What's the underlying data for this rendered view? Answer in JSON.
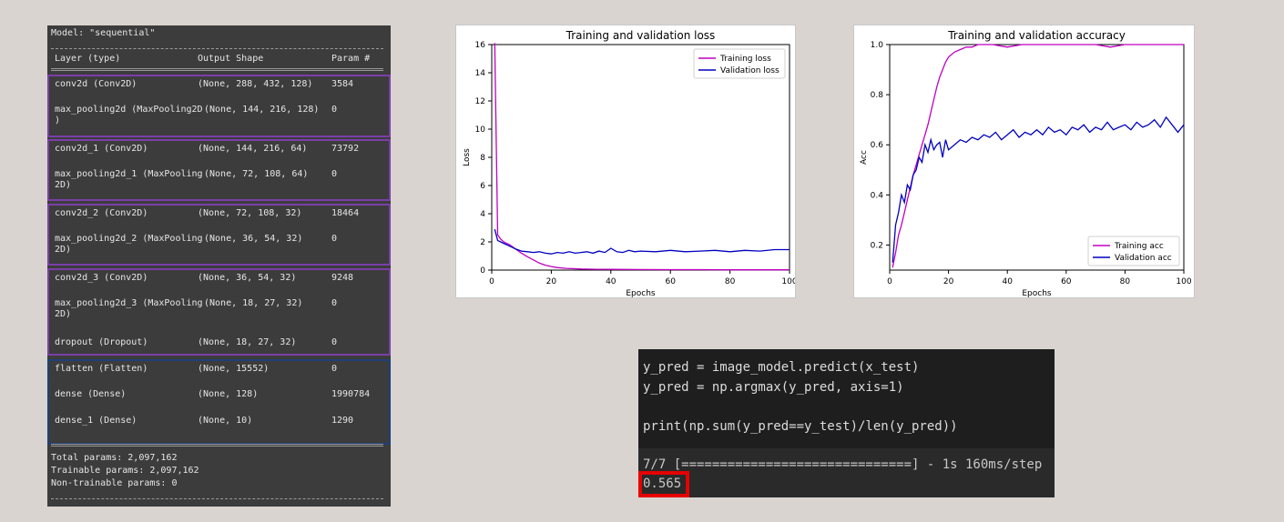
{
  "summary": {
    "model_line": "Model: \"sequential\"",
    "headers": [
      "Layer (type)",
      "Output Shape",
      "Param #"
    ],
    "layers": [
      {
        "name": "conv2d (Conv2D)",
        "shape": "(None, 288, 432, 128)",
        "params": "3584"
      },
      {
        "name": "max_pooling2d (MaxPooling2D\n)",
        "shape": "(None, 144, 216, 128)",
        "params": "0"
      },
      {
        "name": "conv2d_1 (Conv2D)",
        "shape": "(None, 144, 216, 64)",
        "params": "73792"
      },
      {
        "name": "max_pooling2d_1 (MaxPooling\n2D)",
        "shape": "(None, 72, 108, 64)",
        "params": "0"
      },
      {
        "name": "conv2d_2 (Conv2D)",
        "shape": "(None, 72, 108, 32)",
        "params": "18464"
      },
      {
        "name": "max_pooling2d_2 (MaxPooling\n2D)",
        "shape": "(None, 36, 54, 32)",
        "params": "0"
      },
      {
        "name": "conv2d_3 (Conv2D)",
        "shape": "(None, 36, 54, 32)",
        "params": "9248"
      },
      {
        "name": "max_pooling2d_3 (MaxPooling\n2D)",
        "shape": "(None, 18, 27, 32)",
        "params": "0"
      },
      {
        "name": "dropout (Dropout)",
        "shape": "(None, 18, 27, 32)",
        "params": "0"
      },
      {
        "name": "flatten (Flatten)",
        "shape": "(None, 15552)",
        "params": "0"
      },
      {
        "name": "dense (Dense)",
        "shape": "(None, 128)",
        "params": "1990784"
      },
      {
        "name": "dense_1 (Dense)",
        "shape": "(None, 10)",
        "params": "1290"
      }
    ],
    "total": "Total params: 2,097,162",
    "trainable": "Trainable params: 2,097,162",
    "non_trainable": "Non-trainable params: 0"
  },
  "chart_data": [
    {
      "type": "line",
      "title": "Training and validation loss",
      "xlabel": "Epochs",
      "ylabel": "Loss",
      "xlim": [
        0,
        100
      ],
      "ylim": [
        0,
        16
      ],
      "xticks": [
        "0",
        "20",
        "40",
        "60",
        "80",
        "100"
      ],
      "yticks": [
        "0",
        "2",
        "4",
        "6",
        "8",
        "10",
        "12",
        "14",
        "16"
      ],
      "legend_position": "top-right",
      "series": [
        {
          "name": "Training loss",
          "color": "#c000c0",
          "x": [
            1,
            2,
            3,
            4,
            5,
            6,
            7,
            8,
            9,
            10,
            12,
            14,
            16,
            18,
            20,
            22,
            25,
            30,
            35,
            40,
            50,
            60,
            70,
            80,
            90,
            100
          ],
          "y": [
            16.1,
            2.5,
            2.2,
            2.0,
            1.9,
            1.8,
            1.65,
            1.5,
            1.35,
            1.2,
            0.95,
            0.72,
            0.5,
            0.35,
            0.25,
            0.18,
            0.12,
            0.08,
            0.06,
            0.05,
            0.04,
            0.03,
            0.03,
            0.02,
            0.02,
            0.02
          ]
        },
        {
          "name": "Validation loss",
          "color": "#0000c0",
          "x": [
            1,
            2,
            3,
            4,
            5,
            6,
            7,
            8,
            10,
            12,
            14,
            16,
            18,
            20,
            22,
            24,
            26,
            28,
            30,
            32,
            34,
            36,
            38,
            40,
            42,
            44,
            46,
            48,
            50,
            55,
            60,
            65,
            70,
            75,
            80,
            85,
            90,
            95,
            100
          ],
          "y": [
            2.9,
            2.1,
            2.0,
            1.9,
            1.8,
            1.7,
            1.6,
            1.5,
            1.35,
            1.3,
            1.25,
            1.3,
            1.2,
            1.15,
            1.25,
            1.2,
            1.3,
            1.2,
            1.25,
            1.3,
            1.2,
            1.35,
            1.25,
            1.55,
            1.3,
            1.25,
            1.4,
            1.3,
            1.35,
            1.3,
            1.4,
            1.3,
            1.35,
            1.4,
            1.3,
            1.4,
            1.35,
            1.45,
            1.45
          ]
        }
      ]
    },
    {
      "type": "line",
      "title": "Training and validation accuracy",
      "xlabel": "Epochs",
      "ylabel": "Acc",
      "xlim": [
        0,
        100
      ],
      "ylim": [
        0.1,
        1.0
      ],
      "xticks": [
        "0",
        "20",
        "40",
        "60",
        "80",
        "100"
      ],
      "yticks": [
        "0.2",
        "0.4",
        "0.6",
        "0.8",
        "1.0"
      ],
      "legend_position": "bottom-right",
      "series": [
        {
          "name": "Training acc",
          "color": "#c000c0",
          "x": [
            1,
            2,
            3,
            4,
            5,
            6,
            7,
            8,
            9,
            10,
            11,
            12,
            13,
            14,
            15,
            16,
            17,
            18,
            19,
            20,
            22,
            24,
            26,
            28,
            30,
            35,
            40,
            45,
            50,
            55,
            60,
            65,
            70,
            75,
            80,
            85,
            90,
            95,
            100
          ],
          "y": [
            0.11,
            0.17,
            0.24,
            0.28,
            0.33,
            0.38,
            0.43,
            0.48,
            0.52,
            0.56,
            0.6,
            0.64,
            0.68,
            0.73,
            0.78,
            0.83,
            0.87,
            0.9,
            0.93,
            0.95,
            0.97,
            0.98,
            0.99,
            0.99,
            1.0,
            1.0,
            0.99,
            1.0,
            1.0,
            1.0,
            1.0,
            1.0,
            1.0,
            0.99,
            1.0,
            1.0,
            1.0,
            1.0,
            1.0
          ]
        },
        {
          "name": "Validation acc",
          "color": "#0000c0",
          "x": [
            1,
            2,
            3,
            4,
            5,
            6,
            7,
            8,
            9,
            10,
            11,
            12,
            13,
            14,
            15,
            16,
            17,
            18,
            19,
            20,
            22,
            24,
            26,
            28,
            30,
            32,
            34,
            36,
            38,
            40,
            42,
            44,
            46,
            48,
            50,
            52,
            54,
            56,
            58,
            60,
            62,
            64,
            66,
            68,
            70,
            72,
            74,
            76,
            78,
            80,
            82,
            84,
            86,
            88,
            90,
            92,
            94,
            96,
            98,
            100
          ],
          "y": [
            0.13,
            0.28,
            0.33,
            0.4,
            0.37,
            0.44,
            0.42,
            0.48,
            0.5,
            0.55,
            0.53,
            0.6,
            0.57,
            0.62,
            0.58,
            0.6,
            0.61,
            0.55,
            0.62,
            0.58,
            0.6,
            0.62,
            0.61,
            0.63,
            0.62,
            0.64,
            0.63,
            0.65,
            0.62,
            0.64,
            0.66,
            0.63,
            0.65,
            0.64,
            0.66,
            0.64,
            0.67,
            0.65,
            0.66,
            0.64,
            0.67,
            0.66,
            0.68,
            0.65,
            0.67,
            0.66,
            0.69,
            0.66,
            0.67,
            0.68,
            0.66,
            0.69,
            0.67,
            0.68,
            0.7,
            0.67,
            0.71,
            0.68,
            0.65,
            0.68
          ]
        }
      ]
    }
  ],
  "code": {
    "line1": "y_pred = image_model.predict(x_test)",
    "line2": "y_pred = np.argmax(y_pred, axis=1)",
    "line3": "print(np.sum(y_pred==y_test)/len(y_pred))",
    "output_progress": "7/7 [==============================] - 1s 160ms/step",
    "output_value": "0.565"
  }
}
